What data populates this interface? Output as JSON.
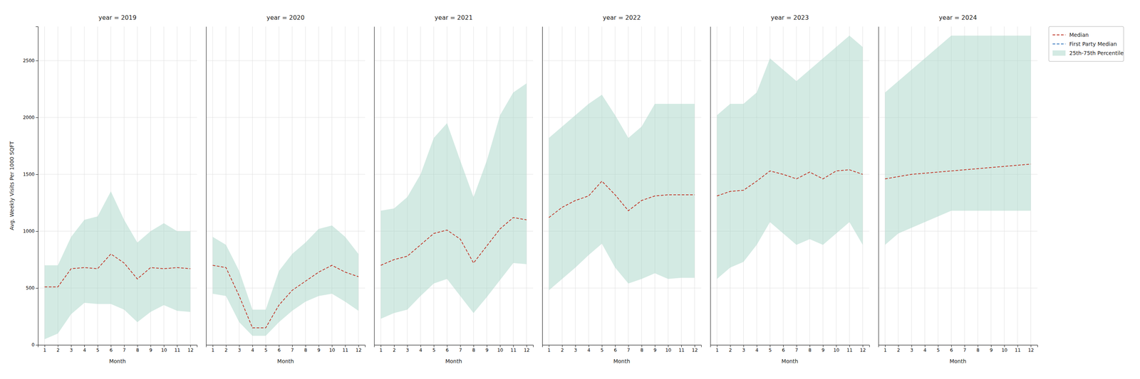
{
  "chart_data": [
    {
      "type": "line",
      "title": "year = 2019",
      "xlabel": "Month",
      "ylabel": "Avg. Weekly Visits Per 1000 SQFT",
      "x": [
        1,
        2,
        3,
        4,
        5,
        6,
        7,
        8,
        9,
        10,
        11,
        12
      ],
      "xlim": [
        0.5,
        12.5
      ],
      "xticks": [
        1,
        2,
        3,
        4,
        5,
        6,
        7,
        8,
        9,
        10,
        11,
        12
      ],
      "ylim": [
        0,
        2800
      ],
      "yticks": [
        0,
        500,
        1000,
        1500,
        2000,
        2500
      ],
      "grid": true,
      "series": [
        {
          "name": "Median",
          "type": "line",
          "color": "#c0392b",
          "line_style": "dashed",
          "values": [
            510,
            510,
            670,
            680,
            670,
            800,
            720,
            580,
            680,
            670,
            680,
            670
          ]
        },
        {
          "name": "25th-75th Percentile",
          "type": "area",
          "color": "#a8d5c8",
          "low": [
            50,
            100,
            270,
            370,
            360,
            360,
            310,
            200,
            290,
            350,
            300,
            290
          ],
          "high": [
            700,
            700,
            950,
            1100,
            1130,
            1350,
            1100,
            900,
            1000,
            1070,
            1000,
            1000
          ]
        }
      ]
    },
    {
      "type": "line",
      "title": "year = 2020",
      "xlabel": "Month",
      "x": [
        1,
        2,
        3,
        4,
        5,
        6,
        7,
        8,
        9,
        10,
        11,
        12
      ],
      "xlim": [
        0.5,
        12.5
      ],
      "xticks": [
        1,
        2,
        3,
        4,
        5,
        6,
        7,
        8,
        9,
        10,
        11,
        12
      ],
      "ylim": [
        0,
        2800
      ],
      "yticks": [
        0,
        500,
        1000,
        1500,
        2000,
        2500
      ],
      "grid": true,
      "tick_labels": "x",
      "series": [
        {
          "name": "Median",
          "type": "line",
          "color": "#c0392b",
          "line_style": "dashed",
          "values": [
            700,
            680,
            430,
            150,
            150,
            350,
            480,
            560,
            640,
            700,
            640,
            600
          ]
        },
        {
          "name": "25th-75th Percentile",
          "type": "area",
          "color": "#a8d5c8",
          "low": [
            450,
            430,
            200,
            80,
            80,
            200,
            300,
            380,
            430,
            450,
            380,
            300
          ],
          "high": [
            950,
            880,
            650,
            310,
            310,
            650,
            800,
            900,
            1020,
            1050,
            950,
            800
          ]
        }
      ]
    },
    {
      "type": "line",
      "title": "year = 2021",
      "xlabel": "Month",
      "x": [
        1,
        2,
        3,
        4,
        5,
        6,
        7,
        8,
        9,
        10,
        11,
        12
      ],
      "xlim": [
        0.5,
        12.5
      ],
      "xticks": [
        1,
        2,
        3,
        4,
        5,
        6,
        7,
        8,
        9,
        10,
        11,
        12
      ],
      "ylim": [
        0,
        2800
      ],
      "yticks": [
        0,
        500,
        1000,
        1500,
        2000,
        2500
      ],
      "grid": true,
      "tick_labels": "x",
      "series": [
        {
          "name": "Median",
          "type": "line",
          "color": "#c0392b",
          "line_style": "dashed",
          "values": [
            700,
            750,
            780,
            880,
            980,
            1010,
            930,
            720,
            870,
            1020,
            1120,
            1100
          ]
        },
        {
          "name": "25th-75th Percentile",
          "type": "area",
          "color": "#a8d5c8",
          "low": [
            230,
            280,
            310,
            430,
            540,
            580,
            430,
            280,
            420,
            570,
            720,
            710
          ],
          "high": [
            1180,
            1200,
            1300,
            1500,
            1820,
            1950,
            1620,
            1300,
            1620,
            2020,
            2220,
            2300
          ]
        }
      ]
    },
    {
      "type": "line",
      "title": "year = 2022",
      "xlabel": "Month",
      "x": [
        1,
        2,
        3,
        4,
        5,
        6,
        7,
        8,
        9,
        10,
        11,
        12
      ],
      "xlim": [
        0.5,
        12.5
      ],
      "xticks": [
        1,
        2,
        3,
        4,
        5,
        6,
        7,
        8,
        9,
        10,
        11,
        12
      ],
      "ylim": [
        0,
        2800
      ],
      "yticks": [
        0,
        500,
        1000,
        1500,
        2000,
        2500
      ],
      "grid": true,
      "tick_labels": "x",
      "series": [
        {
          "name": "Median",
          "type": "line",
          "color": "#c0392b",
          "line_style": "dashed",
          "values": [
            1120,
            1210,
            1270,
            1310,
            1440,
            1320,
            1180,
            1270,
            1310,
            1320,
            1320,
            1320
          ]
        },
        {
          "name": "25th-75th Percentile",
          "type": "area",
          "color": "#a8d5c8",
          "low": [
            480,
            580,
            680,
            790,
            890,
            680,
            540,
            580,
            630,
            580,
            590,
            590
          ],
          "high": [
            1820,
            1920,
            2020,
            2120,
            2200,
            2020,
            1820,
            1920,
            2120,
            2120,
            2120,
            2120
          ]
        }
      ]
    },
    {
      "type": "line",
      "title": "year = 2023",
      "xlabel": "Month",
      "x": [
        1,
        2,
        3,
        4,
        5,
        6,
        7,
        8,
        9,
        10,
        11,
        12
      ],
      "xlim": [
        0.5,
        12.5
      ],
      "xticks": [
        1,
        2,
        3,
        4,
        5,
        6,
        7,
        8,
        9,
        10,
        11,
        12
      ],
      "ylim": [
        0,
        2800
      ],
      "yticks": [
        0,
        500,
        1000,
        1500,
        2000,
        2500
      ],
      "grid": true,
      "tick_labels": "x",
      "series": [
        {
          "name": "Median",
          "type": "line",
          "color": "#c0392b",
          "line_style": "dashed",
          "values": [
            1310,
            1350,
            1360,
            1440,
            1530,
            1500,
            1460,
            1520,
            1460,
            1530,
            1540,
            1500
          ]
        },
        {
          "name": "25th-75th Percentile",
          "type": "area",
          "color": "#a8d5c8",
          "low": [
            580,
            680,
            730,
            880,
            1080,
            980,
            880,
            930,
            880,
            980,
            1080,
            880
          ],
          "high": [
            2020,
            2120,
            2120,
            2220,
            2520,
            2420,
            2320,
            2420,
            2520,
            2620,
            2720,
            2620
          ]
        }
      ]
    },
    {
      "type": "line",
      "title": "year = 2024",
      "xlabel": "Month",
      "x": [
        1,
        2,
        3,
        4,
        5,
        6,
        7,
        8,
        9,
        10,
        11,
        12
      ],
      "xlim": [
        0.5,
        12.5
      ],
      "xticks": [
        1,
        2,
        3,
        4,
        5,
        6,
        7,
        8,
        9,
        10,
        11,
        12
      ],
      "ylim": [
        0,
        2800
      ],
      "yticks": [
        0,
        500,
        1000,
        1500,
        2000,
        2500
      ],
      "grid": true,
      "tick_labels": "x",
      "legend": "right",
      "series": [
        {
          "name": "Median",
          "type": "line",
          "color": "#c0392b",
          "line_style": "dashed",
          "values": [
            1460,
            1480,
            1500,
            1510,
            1520,
            1530,
            1540,
            1550,
            1560,
            1570,
            1580,
            1590
          ]
        },
        {
          "name": "First Party Median",
          "type": "line",
          "color": "#3a7abf",
          "line_style": "dashed",
          "values": [
            null,
            null,
            null,
            null,
            null,
            null,
            null,
            null,
            null,
            null,
            null,
            null
          ]
        },
        {
          "name": "25th-75th Percentile",
          "type": "area",
          "color": "#a8d5c8",
          "low": [
            880,
            980,
            1030,
            1080,
            1130,
            1180,
            1180,
            1180,
            1180,
            1180,
            1180,
            1180
          ],
          "high": [
            2220,
            2320,
            2420,
            2520,
            2620,
            2720,
            2720,
            2720,
            2720,
            2720,
            2720,
            2720
          ]
        }
      ]
    }
  ]
}
